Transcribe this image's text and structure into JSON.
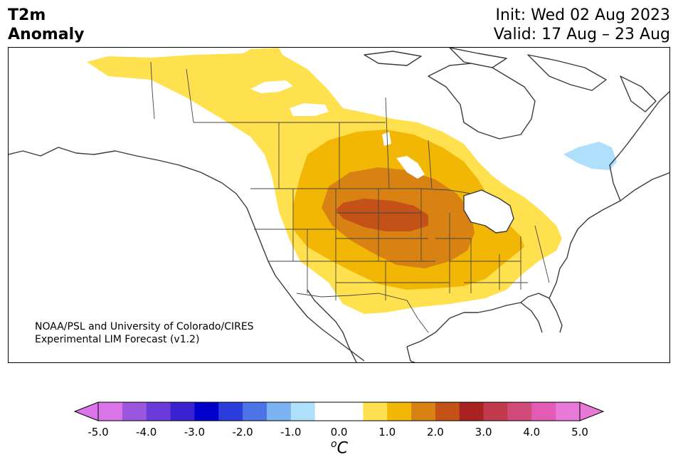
{
  "title": {
    "line1": "T2m",
    "line2": "Anomaly"
  },
  "dates": {
    "init": "Init: Wed 02 Aug 2023",
    "valid": "Valid: 17 Aug – 23 Aug"
  },
  "credit": {
    "line1": "NOAA/PSL and University of Colorado/CIRES",
    "line2": "Experimental LIM Forecast (v1.2)"
  },
  "colorbar": {
    "unit_base": "C",
    "unit_sup": "o",
    "tick_labels": [
      "-5.0",
      "-4.0",
      "-3.0",
      "-2.0",
      "-1.0",
      "0.0",
      "1.0",
      "2.0",
      "3.0",
      "4.0",
      "5.0"
    ],
    "colors": [
      "#d975e8",
      "#9a56dc",
      "#6a3bd9",
      "#3a22d0",
      "#0000cc",
      "#2a3ddb",
      "#4d74e6",
      "#7bb3f2",
      "#aee0fb",
      "#ffffff",
      "#ffffff",
      "#ffe14f",
      "#f2b705",
      "#d98214",
      "#c45118",
      "#a82222",
      "#c23a4e",
      "#d04a7a",
      "#e25bb4",
      "#e879d8"
    ],
    "extend_low_color": "#d975e8",
    "extend_high_color": "#e879d8"
  },
  "chart_data": {
    "type": "heatmap",
    "variable": "T2m Anomaly",
    "units": "°C",
    "levels": [
      -5.0,
      -4.5,
      -4.0,
      -3.5,
      -3.0,
      -2.5,
      -2.0,
      -1.5,
      -1.0,
      -0.5,
      0.0,
      0.5,
      1.0,
      1.5,
      2.0,
      2.5,
      3.0,
      3.5,
      4.0,
      4.5,
      5.0
    ],
    "extend": "both",
    "anomaly_regions": [
      {
        "region": "Canadian Prairies to northern US Plains",
        "value": 0.5
      },
      {
        "region": "Northern and Central Plains",
        "value": 1.0
      },
      {
        "region": "Northern Plains core",
        "value": 1.5
      },
      {
        "region": "South Dakota / Nebraska peak",
        "value": 2.0
      },
      {
        "region": "Hudson Bay / Quebec",
        "value": -1.0
      }
    ]
  }
}
